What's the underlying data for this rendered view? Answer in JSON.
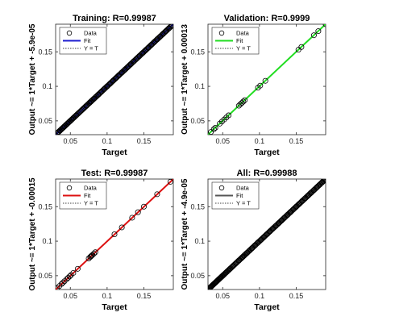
{
  "chart_data": [
    {
      "type": "scatter",
      "title": "Training: R=0.99987",
      "xlabel": "Target",
      "ylabel": "Output ~= 1*Target + -5.9e-05",
      "xlim": [
        0.03,
        0.19
      ],
      "ylim": [
        0.03,
        0.19
      ],
      "xticks": [
        "0.05",
        "0.1",
        "0.15"
      ],
      "yticks": [
        "0.05",
        "0.1",
        "0.15"
      ],
      "fit_color": "#1f1fd0",
      "legend": [
        "Data",
        "Fit",
        "Y = T"
      ],
      "legend_position": "top-left",
      "series": [
        {
          "name": "Data",
          "density": "dense",
          "range": [
            0.032,
            0.188
          ],
          "x": [
            0.032,
            0.034,
            0.036,
            0.038,
            0.04,
            0.042,
            0.044,
            0.046,
            0.048,
            0.05,
            0.052,
            0.054,
            0.056,
            0.058,
            0.068,
            0.072,
            0.076,
            0.078,
            0.08,
            0.082,
            0.085,
            0.088,
            0.092,
            0.096,
            0.1,
            0.104,
            0.108,
            0.112,
            0.116,
            0.12,
            0.124,
            0.128,
            0.132,
            0.136,
            0.14,
            0.144,
            0.148,
            0.152,
            0.156,
            0.16,
            0.164,
            0.168,
            0.172,
            0.176,
            0.18,
            0.184,
            0.188
          ]
        },
        {
          "name": "Fit",
          "slope": 1,
          "intercept": -5.9e-05
        },
        {
          "name": "Y = T",
          "slope": 1,
          "intercept": 0
        }
      ]
    },
    {
      "type": "scatter",
      "title": "Validation: R=0.9999",
      "xlabel": "Target",
      "ylabel": "Output ~= 1*Target + 0.00013",
      "xlim": [
        0.03,
        0.19
      ],
      "ylim": [
        0.03,
        0.19
      ],
      "xticks": [
        "0.05",
        "0.1",
        "0.15"
      ],
      "yticks": [
        "0.05",
        "0.1",
        "0.15"
      ],
      "fit_color": "#22dd22",
      "legend": [
        "Data",
        "Fit",
        "Y = T"
      ],
      "legend_position": "top-left",
      "series": [
        {
          "name": "Data",
          "x": [
            0.034,
            0.038,
            0.04,
            0.046,
            0.049,
            0.052,
            0.055,
            0.058,
            0.072,
            0.074,
            0.076,
            0.078,
            0.08,
            0.098,
            0.101,
            0.108,
            0.153,
            0.157,
            0.174,
            0.18,
            0.19
          ]
        },
        {
          "name": "Fit",
          "slope": 1,
          "intercept": 0.00013
        },
        {
          "name": "Y = T",
          "slope": 1,
          "intercept": 0
        }
      ]
    },
    {
      "type": "scatter",
      "title": "Test: R=0.99987",
      "xlabel": "Target",
      "ylabel": "Output ~= 1*Target + -0.00015",
      "xlim": [
        0.03,
        0.19
      ],
      "ylim": [
        0.03,
        0.19
      ],
      "xticks": [
        "0.05",
        "0.1",
        "0.15"
      ],
      "yticks": [
        "0.05",
        "0.1",
        "0.15"
      ],
      "fit_color": "#dd1111",
      "legend": [
        "Data",
        "Fit",
        "Y = T"
      ],
      "legend_position": "top-left",
      "series": [
        {
          "name": "Data",
          "x": [
            0.032,
            0.035,
            0.038,
            0.04,
            0.042,
            0.045,
            0.047,
            0.049,
            0.051,
            0.054,
            0.06,
            0.075,
            0.077,
            0.078,
            0.079,
            0.08,
            0.082,
            0.084,
            0.11,
            0.12,
            0.134,
            0.142,
            0.15,
            0.168,
            0.186
          ]
        },
        {
          "name": "Fit",
          "slope": 1,
          "intercept": -0.00015
        },
        {
          "name": "Y = T",
          "slope": 1,
          "intercept": 0
        }
      ]
    },
    {
      "type": "scatter",
      "title": "All: R=0.99988",
      "xlabel": "Target",
      "ylabel": "Output ~= 1*Target + -4.9e-05",
      "xlim": [
        0.03,
        0.19
      ],
      "ylim": [
        0.03,
        0.19
      ],
      "xticks": [
        "0.05",
        "0.1",
        "0.15"
      ],
      "yticks": [
        "0.05",
        "0.1",
        "0.15"
      ],
      "fit_color": "#555555",
      "legend": [
        "Data",
        "Fit",
        "Y = T"
      ],
      "legend_position": "top-left",
      "series": [
        {
          "name": "Data",
          "density": "dense",
          "range": [
            0.032,
            0.19
          ],
          "x": [
            0.032,
            0.033,
            0.034,
            0.035,
            0.036,
            0.037,
            0.038,
            0.039,
            0.04,
            0.041,
            0.042,
            0.043,
            0.044,
            0.045,
            0.046,
            0.047,
            0.048,
            0.049,
            0.05,
            0.051,
            0.052,
            0.054,
            0.056,
            0.058,
            0.06,
            0.064,
            0.068,
            0.072,
            0.075,
            0.077,
            0.079,
            0.081,
            0.083,
            0.086,
            0.09,
            0.094,
            0.098,
            0.102,
            0.106,
            0.11,
            0.114,
            0.118,
            0.122,
            0.126,
            0.13,
            0.134,
            0.138,
            0.142,
            0.146,
            0.15,
            0.154,
            0.158,
            0.162,
            0.166,
            0.17,
            0.174,
            0.178,
            0.182,
            0.185,
            0.187,
            0.189,
            0.19
          ]
        },
        {
          "name": "Fit",
          "slope": 1,
          "intercept": -4.9e-05
        },
        {
          "name": "Y = T",
          "slope": 1,
          "intercept": 0
        }
      ]
    }
  ]
}
